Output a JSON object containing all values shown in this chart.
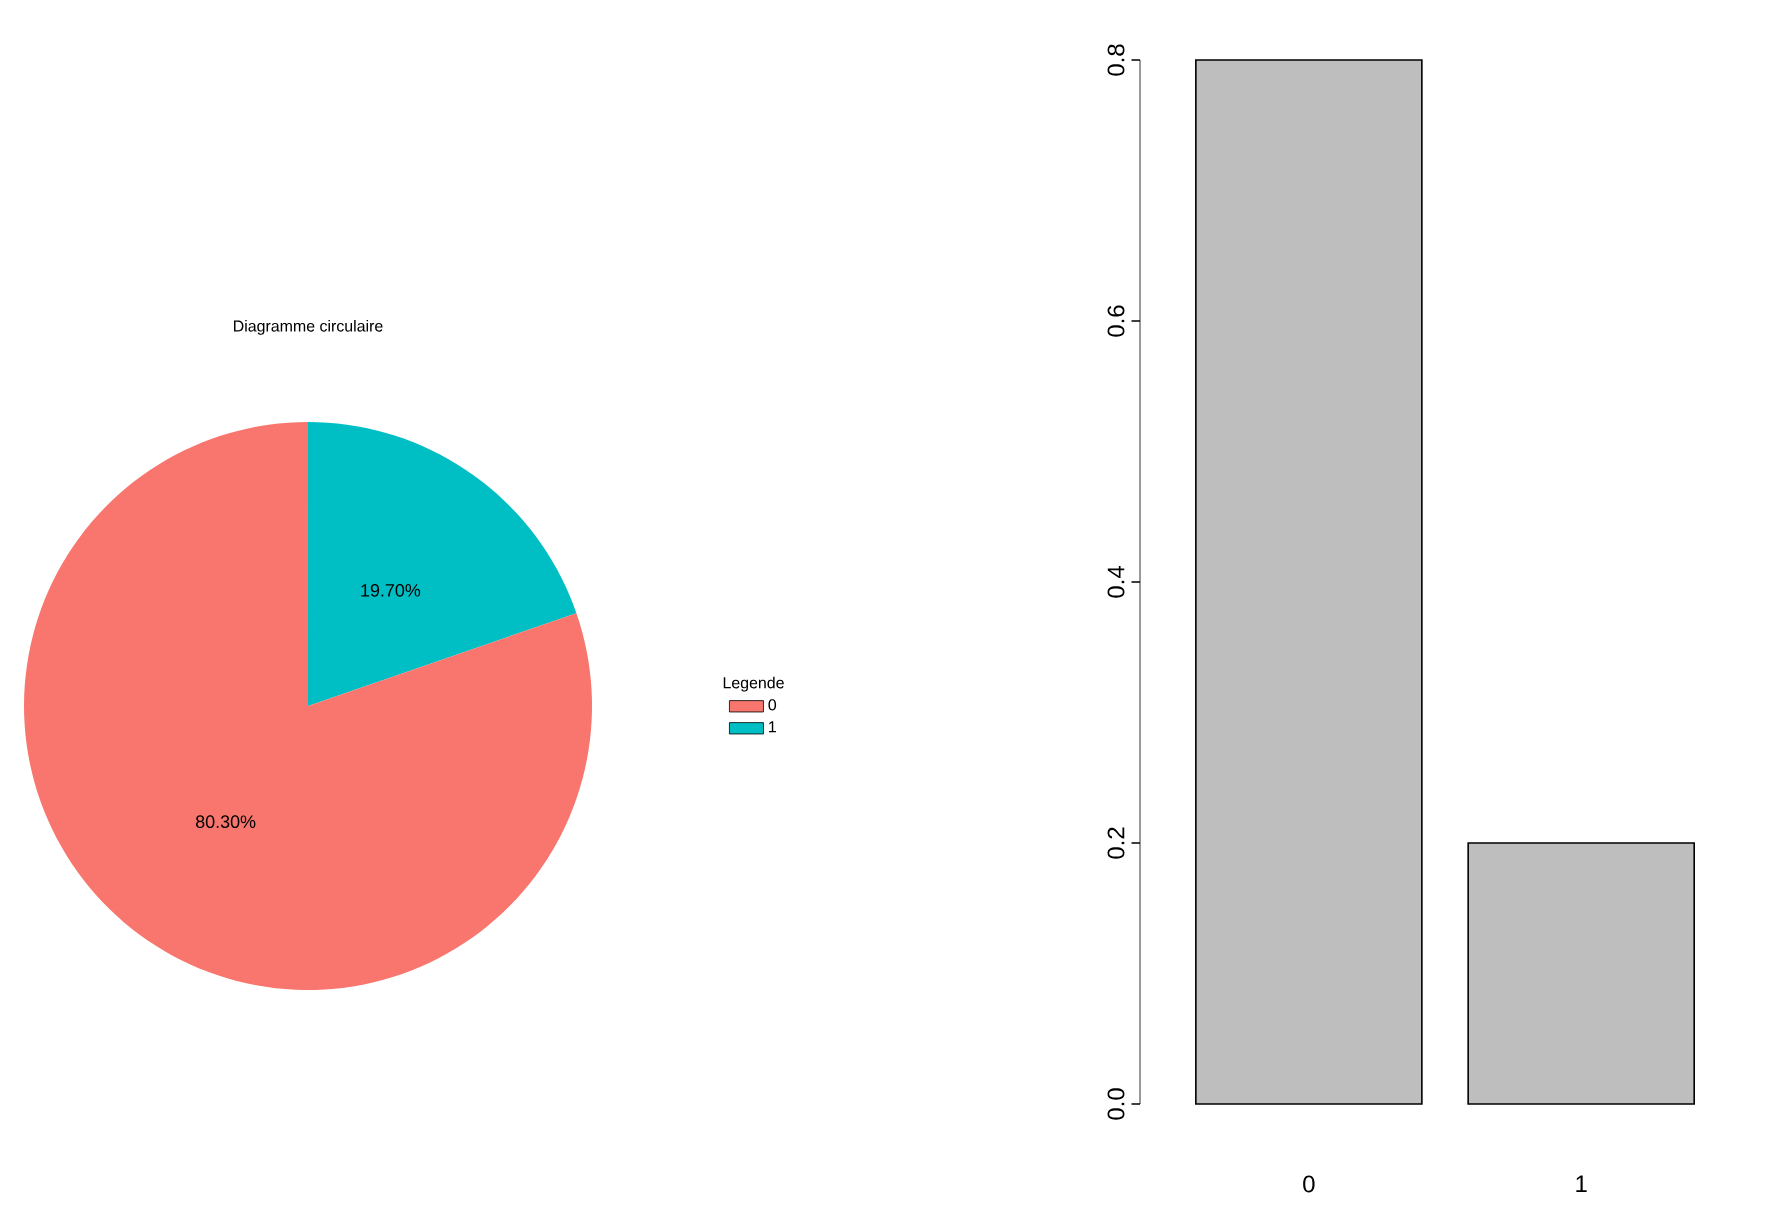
{
  "chart_data": [
    {
      "type": "pie",
      "title": "Diagramme circulaire",
      "categories": [
        "0",
        "1"
      ],
      "values": [
        80.3,
        19.7
      ],
      "colors": [
        "#f8766d",
        "#00bfc4"
      ],
      "value_labels": [
        "80.30%",
        "19.70%"
      ],
      "legend": "right",
      "legend_title": "Legende"
    },
    {
      "type": "bar",
      "categories": [
        "0",
        "1"
      ],
      "values": [
        0.8,
        0.2
      ],
      "color": "#bebebe",
      "ylim": [
        0,
        0.8
      ],
      "yticks": [
        {
          "value": 0,
          "label": "0.0"
        },
        {
          "value": 0.2,
          "label": "0.2"
        },
        {
          "value": 0.4,
          "label": "0.4"
        },
        {
          "value": 0.6,
          "label": "0.6"
        },
        {
          "value": 0.8,
          "label": "0.8"
        }
      ]
    }
  ]
}
